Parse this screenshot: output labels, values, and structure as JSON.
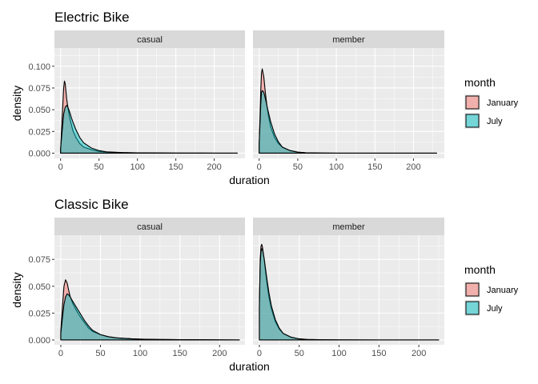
{
  "chart_data": [
    {
      "type": "area",
      "title": "Electric Bike",
      "xlabel": "duration",
      "ylabel": "density",
      "xlim": [
        -8,
        240
      ],
      "ylim": [
        -0.006,
        0.121
      ],
      "x_ticks": [
        "0",
        "50",
        "100",
        "150",
        "200"
      ],
      "y_ticks": [
        "0.000",
        "0.025",
        "0.050",
        "0.075",
        "0.100"
      ],
      "legend": {
        "title": "month",
        "position": "right",
        "entries": [
          "January",
          "July"
        ]
      },
      "facets": [
        {
          "label": "casual",
          "series": [
            {
              "name": "January",
              "x": [
                0,
                2,
                4,
                5,
                6,
                8,
                10,
                12,
                14,
                16,
                20,
                25,
                30,
                40,
                50,
                60,
                80,
                100,
                150,
                200,
                230
              ],
              "y": [
                0.003,
                0.04,
                0.075,
                0.083,
                0.08,
                0.062,
                0.05,
                0.04,
                0.033,
                0.026,
                0.018,
                0.011,
                0.007,
                0.004,
                0.002,
                0.0012,
                0.0006,
                0.0003,
                0.0001,
                5e-05,
                0.0
              ]
            },
            {
              "name": "July",
              "x": [
                0,
                2,
                4,
                6,
                8,
                10,
                12,
                14,
                16,
                20,
                25,
                30,
                40,
                50,
                60,
                80,
                100,
                150,
                200,
                230
              ],
              "y": [
                0.005,
                0.025,
                0.045,
                0.053,
                0.055,
                0.052,
                0.047,
                0.041,
                0.036,
                0.027,
                0.018,
                0.012,
                0.006,
                0.003,
                0.0015,
                0.0007,
                0.0004,
                0.0002,
                0.0001,
                0.0
              ]
            }
          ]
        },
        {
          "label": "member",
          "series": [
            {
              "name": "January",
              "x": [
                0,
                2,
                3,
                4,
                6,
                8,
                10,
                12,
                15,
                20,
                25,
                30,
                40,
                50,
                60,
                80,
                100,
                150,
                200,
                230
              ],
              "y": [
                0.01,
                0.07,
                0.092,
                0.097,
                0.088,
                0.07,
                0.055,
                0.043,
                0.03,
                0.018,
                0.011,
                0.007,
                0.003,
                0.0012,
                0.0005,
                0.0002,
                0.0001,
                5e-05,
                2e-05,
                0.0
              ]
            },
            {
              "name": "July",
              "x": [
                0,
                2,
                3,
                4,
                6,
                8,
                10,
                12,
                15,
                20,
                25,
                30,
                40,
                50,
                60,
                80,
                100,
                150,
                200,
                230
              ],
              "y": [
                0.01,
                0.055,
                0.07,
                0.072,
                0.07,
                0.063,
                0.055,
                0.047,
                0.036,
                0.022,
                0.013,
                0.007,
                0.003,
                0.0012,
                0.0005,
                0.0002,
                0.0001,
                5e-05,
                2e-05,
                0.0
              ]
            }
          ]
        }
      ]
    },
    {
      "type": "area",
      "title": "Classic Bike",
      "xlabel": "duration",
      "ylabel": "density",
      "xlim": [
        -8,
        232
      ],
      "ylim": [
        -0.0045,
        0.0975
      ],
      "x_ticks": [
        "0",
        "50",
        "100",
        "150",
        "200"
      ],
      "y_ticks": [
        "0.000",
        "0.025",
        "0.050",
        "0.075"
      ],
      "legend": {
        "title": "month",
        "position": "right",
        "entries": [
          "January",
          "July"
        ]
      },
      "facets": [
        {
          "label": "casual",
          "series": [
            {
              "name": "January",
              "x": [
                0,
                2,
                4,
                6,
                8,
                10,
                12,
                15,
                20,
                25,
                30,
                35,
                40,
                50,
                60,
                70,
                80,
                90,
                100,
                120,
                150,
                200,
                225
              ],
              "y": [
                0.008,
                0.03,
                0.05,
                0.056,
                0.053,
                0.046,
                0.04,
                0.034,
                0.027,
                0.021,
                0.016,
                0.011,
                0.008,
                0.005,
                0.003,
                0.002,
                0.0015,
                0.001,
                0.0008,
                0.0005,
                0.0003,
                0.0001,
                0.0
              ]
            },
            {
              "name": "July",
              "x": [
                0,
                2,
                4,
                6,
                8,
                10,
                12,
                15,
                20,
                25,
                30,
                35,
                40,
                50,
                60,
                70,
                80,
                90,
                100,
                120,
                150,
                200,
                225
              ],
              "y": [
                0.006,
                0.02,
                0.033,
                0.04,
                0.043,
                0.042,
                0.04,
                0.036,
                0.03,
                0.024,
                0.018,
                0.013,
                0.009,
                0.005,
                0.003,
                0.002,
                0.0015,
                0.001,
                0.0008,
                0.0005,
                0.0003,
                0.0001,
                0.0
              ]
            }
          ]
        },
        {
          "label": "member",
          "series": [
            {
              "name": "January",
              "x": [
                0,
                1,
                2,
                3,
                4,
                6,
                8,
                10,
                12,
                15,
                20,
                25,
                30,
                40,
                50,
                60,
                80,
                100,
                150,
                200,
                225
              ],
              "y": [
                0.03,
                0.075,
                0.087,
                0.089,
                0.086,
                0.075,
                0.062,
                0.05,
                0.04,
                0.029,
                0.017,
                0.01,
                0.006,
                0.0025,
                0.001,
                0.0005,
                0.0002,
                0.0001,
                5e-05,
                2e-05,
                0.0
              ]
            },
            {
              "name": "July",
              "x": [
                0,
                1,
                2,
                3,
                4,
                6,
                8,
                10,
                12,
                15,
                20,
                25,
                30,
                40,
                50,
                60,
                80,
                100,
                150,
                200,
                225
              ],
              "y": [
                0.03,
                0.07,
                0.082,
                0.085,
                0.084,
                0.076,
                0.065,
                0.054,
                0.044,
                0.032,
                0.019,
                0.011,
                0.006,
                0.0025,
                0.001,
                0.0005,
                0.0002,
                0.0001,
                5e-05,
                2e-05,
                0.0
              ]
            }
          ]
        }
      ]
    }
  ],
  "colors": {
    "January_fill": "#F8766D",
    "July_fill": "#00BFC4",
    "panel_bg": "#EBEBEB",
    "strip_bg": "#D9D9D9",
    "grid": "#FFFFFF"
  }
}
